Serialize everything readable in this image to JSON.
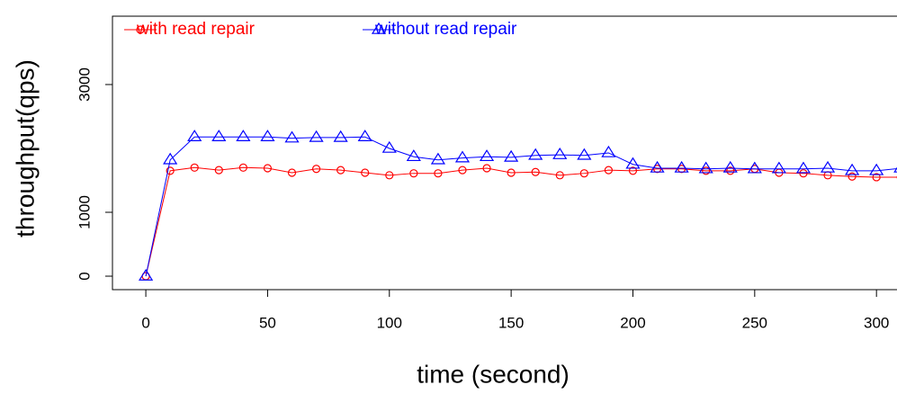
{
  "chart_data": {
    "type": "line",
    "xlabel": "time (second)",
    "ylabel": "throughput(qps)",
    "x": [
      0,
      10,
      20,
      30,
      40,
      50,
      60,
      70,
      80,
      90,
      100,
      110,
      120,
      130,
      140,
      150,
      160,
      170,
      180,
      190,
      200,
      210,
      220,
      230,
      240,
      250,
      260,
      270,
      280,
      290,
      300,
      310
    ],
    "series": [
      {
        "name": "with read repair",
        "color": "#ff0000",
        "marker": "circle",
        "values": [
          0,
          1650,
          1700,
          1660,
          1700,
          1690,
          1620,
          1680,
          1660,
          1620,
          1580,
          1610,
          1610,
          1660,
          1690,
          1620,
          1630,
          1580,
          1610,
          1660,
          1650,
          1680,
          1680,
          1650,
          1650,
          1680,
          1620,
          1610,
          1580,
          1560,
          1550,
          1550
        ]
      },
      {
        "name": "without read repair",
        "color": "#0000ff",
        "marker": "triangle",
        "values": [
          0,
          1820,
          2180,
          2180,
          2180,
          2180,
          2160,
          2170,
          2170,
          2180,
          2000,
          1870,
          1820,
          1850,
          1870,
          1860,
          1890,
          1900,
          1890,
          1930,
          1750,
          1690,
          1690,
          1680,
          1690,
          1680,
          1680,
          1680,
          1690,
          1650,
          1650,
          1690
        ]
      }
    ],
    "xlim": [
      -13.7,
      308.8
    ],
    "ylim": [
      -211,
      4070
    ],
    "xticks": [
      0,
      50,
      100,
      150,
      200,
      250,
      300
    ],
    "yticks": [
      0,
      1000,
      3000
    ],
    "legend": "top-left",
    "grid": false
  }
}
